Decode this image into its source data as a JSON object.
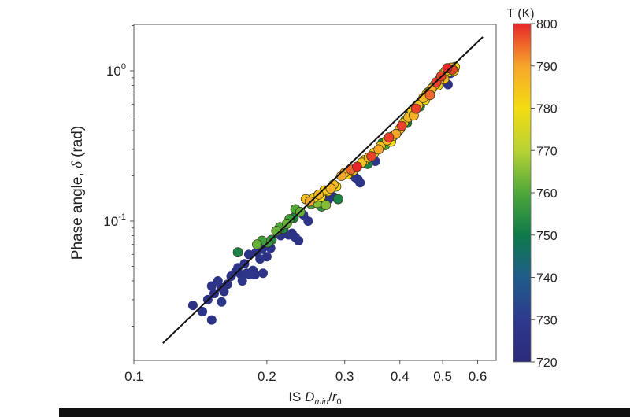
{
  "chart_data": {
    "type": "scatter",
    "title": "",
    "xlabel": "IS D_min/r_0",
    "ylabel": "Phase angle, δ (rad)",
    "xscale": "log",
    "yscale": "log",
    "xlim": [
      0.1,
      0.65
    ],
    "ylim": [
      0.0118,
      2.04
    ],
    "x_ticks": [
      0.1,
      0.2,
      0.3,
      0.4,
      0.5,
      0.6
    ],
    "x_tick_labels": [
      "0.1",
      "0.2",
      "0.3",
      "0.4",
      "0.5",
      "0.6"
    ],
    "y_ticks": [
      0.1,
      1.0
    ],
    "y_tick_labels": [
      "10^-1",
      "10^0"
    ],
    "grid": false,
    "colorbar": {
      "label": "T (K)",
      "min": 720,
      "max": 800,
      "ticks": [
        720,
        730,
        740,
        750,
        760,
        770,
        780,
        790,
        800
      ],
      "colormap": [
        "#2b2a7a",
        "#2e3a8e",
        "#1f5c8a",
        "#0f7a4a",
        "#4fa83a",
        "#b8d234",
        "#f4dc12",
        "#f6a62a",
        "#e8262a"
      ]
    },
    "fit_line": {
      "x": [
        0.1163,
        0.6163
      ],
      "y": [
        0.0154,
        1.68
      ]
    },
    "points": [
      {
        "x": 0.136,
        "y": 0.0275,
        "T": 725
      },
      {
        "x": 0.143,
        "y": 0.025,
        "T": 728
      },
      {
        "x": 0.15,
        "y": 0.022,
        "T": 726
      },
      {
        "x": 0.147,
        "y": 0.03,
        "T": 727
      },
      {
        "x": 0.152,
        "y": 0.033,
        "T": 725
      },
      {
        "x": 0.15,
        "y": 0.037,
        "T": 726
      },
      {
        "x": 0.155,
        "y": 0.04,
        "T": 727
      },
      {
        "x": 0.158,
        "y": 0.036,
        "T": 724
      },
      {
        "x": 0.16,
        "y": 0.034,
        "T": 726
      },
      {
        "x": 0.163,
        "y": 0.038,
        "T": 725
      },
      {
        "x": 0.158,
        "y": 0.029,
        "T": 728
      },
      {
        "x": 0.166,
        "y": 0.043,
        "T": 726
      },
      {
        "x": 0.17,
        "y": 0.046,
        "T": 725
      },
      {
        "x": 0.172,
        "y": 0.049,
        "T": 727
      },
      {
        "x": 0.175,
        "y": 0.044,
        "T": 726
      },
      {
        "x": 0.178,
        "y": 0.052,
        "T": 725
      },
      {
        "x": 0.18,
        "y": 0.045,
        "T": 727
      },
      {
        "x": 0.183,
        "y": 0.044,
        "T": 728
      },
      {
        "x": 0.186,
        "y": 0.047,
        "T": 726
      },
      {
        "x": 0.188,
        "y": 0.044,
        "T": 725
      },
      {
        "x": 0.176,
        "y": 0.04,
        "T": 727
      },
      {
        "x": 0.182,
        "y": 0.06,
        "T": 726
      },
      {
        "x": 0.189,
        "y": 0.062,
        "T": 725
      },
      {
        "x": 0.193,
        "y": 0.056,
        "T": 727
      },
      {
        "x": 0.196,
        "y": 0.045,
        "T": 726
      },
      {
        "x": 0.195,
        "y": 0.065,
        "T": 728
      },
      {
        "x": 0.2,
        "y": 0.058,
        "T": 725
      },
      {
        "x": 0.172,
        "y": 0.062,
        "T": 752
      },
      {
        "x": 0.19,
        "y": 0.07,
        "T": 762
      },
      {
        "x": 0.195,
        "y": 0.074,
        "T": 758
      },
      {
        "x": 0.201,
        "y": 0.072,
        "T": 757
      },
      {
        "x": 0.205,
        "y": 0.075,
        "T": 754
      },
      {
        "x": 0.204,
        "y": 0.066,
        "T": 727
      },
      {
        "x": 0.21,
        "y": 0.086,
        "T": 762
      },
      {
        "x": 0.214,
        "y": 0.091,
        "T": 760
      },
      {
        "x": 0.218,
        "y": 0.089,
        "T": 752
      },
      {
        "x": 0.222,
        "y": 0.096,
        "T": 762
      },
      {
        "x": 0.215,
        "y": 0.08,
        "T": 726
      },
      {
        "x": 0.224,
        "y": 0.081,
        "T": 725
      },
      {
        "x": 0.228,
        "y": 0.083,
        "T": 726
      },
      {
        "x": 0.232,
        "y": 0.078,
        "T": 727
      },
      {
        "x": 0.236,
        "y": 0.074,
        "T": 725
      },
      {
        "x": 0.225,
        "y": 0.103,
        "T": 758
      },
      {
        "x": 0.23,
        "y": 0.105,
        "T": 752
      },
      {
        "x": 0.238,
        "y": 0.115,
        "T": 762
      },
      {
        "x": 0.232,
        "y": 0.12,
        "T": 760
      },
      {
        "x": 0.242,
        "y": 0.11,
        "T": 728
      },
      {
        "x": 0.248,
        "y": 0.1,
        "T": 726
      },
      {
        "x": 0.245,
        "y": 0.14,
        "T": 785
      },
      {
        "x": 0.25,
        "y": 0.135,
        "T": 790
      },
      {
        "x": 0.256,
        "y": 0.143,
        "T": 782
      },
      {
        "x": 0.252,
        "y": 0.13,
        "T": 760
      },
      {
        "x": 0.26,
        "y": 0.132,
        "T": 765
      },
      {
        "x": 0.262,
        "y": 0.15,
        "T": 787
      },
      {
        "x": 0.265,
        "y": 0.145,
        "T": 780
      },
      {
        "x": 0.27,
        "y": 0.16,
        "T": 784
      },
      {
        "x": 0.266,
        "y": 0.125,
        "T": 755
      },
      {
        "x": 0.272,
        "y": 0.128,
        "T": 765
      },
      {
        "x": 0.275,
        "y": 0.158,
        "T": 782
      },
      {
        "x": 0.279,
        "y": 0.165,
        "T": 788
      },
      {
        "x": 0.283,
        "y": 0.175,
        "T": 786
      },
      {
        "x": 0.287,
        "y": 0.17,
        "T": 780
      },
      {
        "x": 0.276,
        "y": 0.14,
        "T": 728
      },
      {
        "x": 0.283,
        "y": 0.145,
        "T": 726
      },
      {
        "x": 0.29,
        "y": 0.14,
        "T": 752
      },
      {
        "x": 0.295,
        "y": 0.2,
        "T": 790
      },
      {
        "x": 0.3,
        "y": 0.21,
        "T": 788
      },
      {
        "x": 0.305,
        "y": 0.205,
        "T": 782
      },
      {
        "x": 0.31,
        "y": 0.22,
        "T": 795
      },
      {
        "x": 0.313,
        "y": 0.215,
        "T": 785
      },
      {
        "x": 0.32,
        "y": 0.23,
        "T": 800
      },
      {
        "x": 0.317,
        "y": 0.195,
        "T": 725
      },
      {
        "x": 0.322,
        "y": 0.188,
        "T": 727
      },
      {
        "x": 0.325,
        "y": 0.18,
        "T": 726
      },
      {
        "x": 0.328,
        "y": 0.245,
        "T": 785
      },
      {
        "x": 0.333,
        "y": 0.255,
        "T": 780
      },
      {
        "x": 0.338,
        "y": 0.24,
        "T": 752
      },
      {
        "x": 0.34,
        "y": 0.265,
        "T": 787
      },
      {
        "x": 0.345,
        "y": 0.27,
        "T": 798
      },
      {
        "x": 0.35,
        "y": 0.285,
        "T": 782
      },
      {
        "x": 0.352,
        "y": 0.25,
        "T": 728
      },
      {
        "x": 0.358,
        "y": 0.3,
        "T": 790
      },
      {
        "x": 0.362,
        "y": 0.315,
        "T": 785
      },
      {
        "x": 0.365,
        "y": 0.33,
        "T": 752
      },
      {
        "x": 0.37,
        "y": 0.32,
        "T": 760
      },
      {
        "x": 0.374,
        "y": 0.345,
        "T": 786
      },
      {
        "x": 0.378,
        "y": 0.36,
        "T": 798
      },
      {
        "x": 0.382,
        "y": 0.338,
        "T": 780
      },
      {
        "x": 0.387,
        "y": 0.37,
        "T": 784
      },
      {
        "x": 0.392,
        "y": 0.38,
        "T": 790
      },
      {
        "x": 0.396,
        "y": 0.392,
        "T": 726
      },
      {
        "x": 0.4,
        "y": 0.41,
        "T": 785
      },
      {
        "x": 0.404,
        "y": 0.43,
        "T": 798
      },
      {
        "x": 0.408,
        "y": 0.45,
        "T": 780
      },
      {
        "x": 0.412,
        "y": 0.47,
        "T": 760
      },
      {
        "x": 0.415,
        "y": 0.45,
        "T": 752
      },
      {
        "x": 0.418,
        "y": 0.49,
        "T": 787
      },
      {
        "x": 0.422,
        "y": 0.52,
        "T": 726
      },
      {
        "x": 0.426,
        "y": 0.54,
        "T": 782
      },
      {
        "x": 0.43,
        "y": 0.505,
        "T": 788
      },
      {
        "x": 0.435,
        "y": 0.56,
        "T": 798
      },
      {
        "x": 0.44,
        "y": 0.59,
        "T": 786
      },
      {
        "x": 0.444,
        "y": 0.58,
        "T": 752
      },
      {
        "x": 0.448,
        "y": 0.62,
        "T": 765
      },
      {
        "x": 0.452,
        "y": 0.66,
        "T": 787
      },
      {
        "x": 0.456,
        "y": 0.64,
        "T": 780
      },
      {
        "x": 0.46,
        "y": 0.7,
        "T": 785
      },
      {
        "x": 0.464,
        "y": 0.72,
        "T": 762
      },
      {
        "x": 0.468,
        "y": 0.69,
        "T": 795
      },
      {
        "x": 0.472,
        "y": 0.76,
        "T": 788
      },
      {
        "x": 0.476,
        "y": 0.78,
        "T": 760
      },
      {
        "x": 0.48,
        "y": 0.81,
        "T": 786
      },
      {
        "x": 0.484,
        "y": 0.84,
        "T": 798
      },
      {
        "x": 0.488,
        "y": 0.8,
        "T": 782
      },
      {
        "x": 0.492,
        "y": 0.88,
        "T": 790
      },
      {
        "x": 0.496,
        "y": 0.92,
        "T": 798
      },
      {
        "x": 0.5,
        "y": 0.95,
        "T": 785
      },
      {
        "x": 0.504,
        "y": 0.88,
        "T": 787
      },
      {
        "x": 0.508,
        "y": 1.0,
        "T": 788
      },
      {
        "x": 0.512,
        "y": 1.04,
        "T": 800
      },
      {
        "x": 0.516,
        "y": 0.98,
        "T": 782
      },
      {
        "x": 0.52,
        "y": 0.96,
        "T": 726
      },
      {
        "x": 0.522,
        "y": 1.05,
        "T": 790
      },
      {
        "x": 0.526,
        "y": 1.02,
        "T": 798
      },
      {
        "x": 0.53,
        "y": 1.0,
        "T": 785
      },
      {
        "x": 0.514,
        "y": 0.81,
        "T": 725
      },
      {
        "x": 0.533,
        "y": 1.06,
        "T": 782
      }
    ]
  },
  "axes": {
    "x_label_prefix": "IS ",
    "x_label_main": "D",
    "x_label_sub": "min",
    "x_label_slash": "/",
    "x_label_r": "r",
    "x_label_rsub": "0",
    "y_label_text": "Phase angle, ",
    "y_label_delta": "δ",
    "y_label_unit": " (rad)",
    "y_tick_base": "10",
    "y_tick_exp_0": "0",
    "y_tick_exp_1": "-1"
  }
}
